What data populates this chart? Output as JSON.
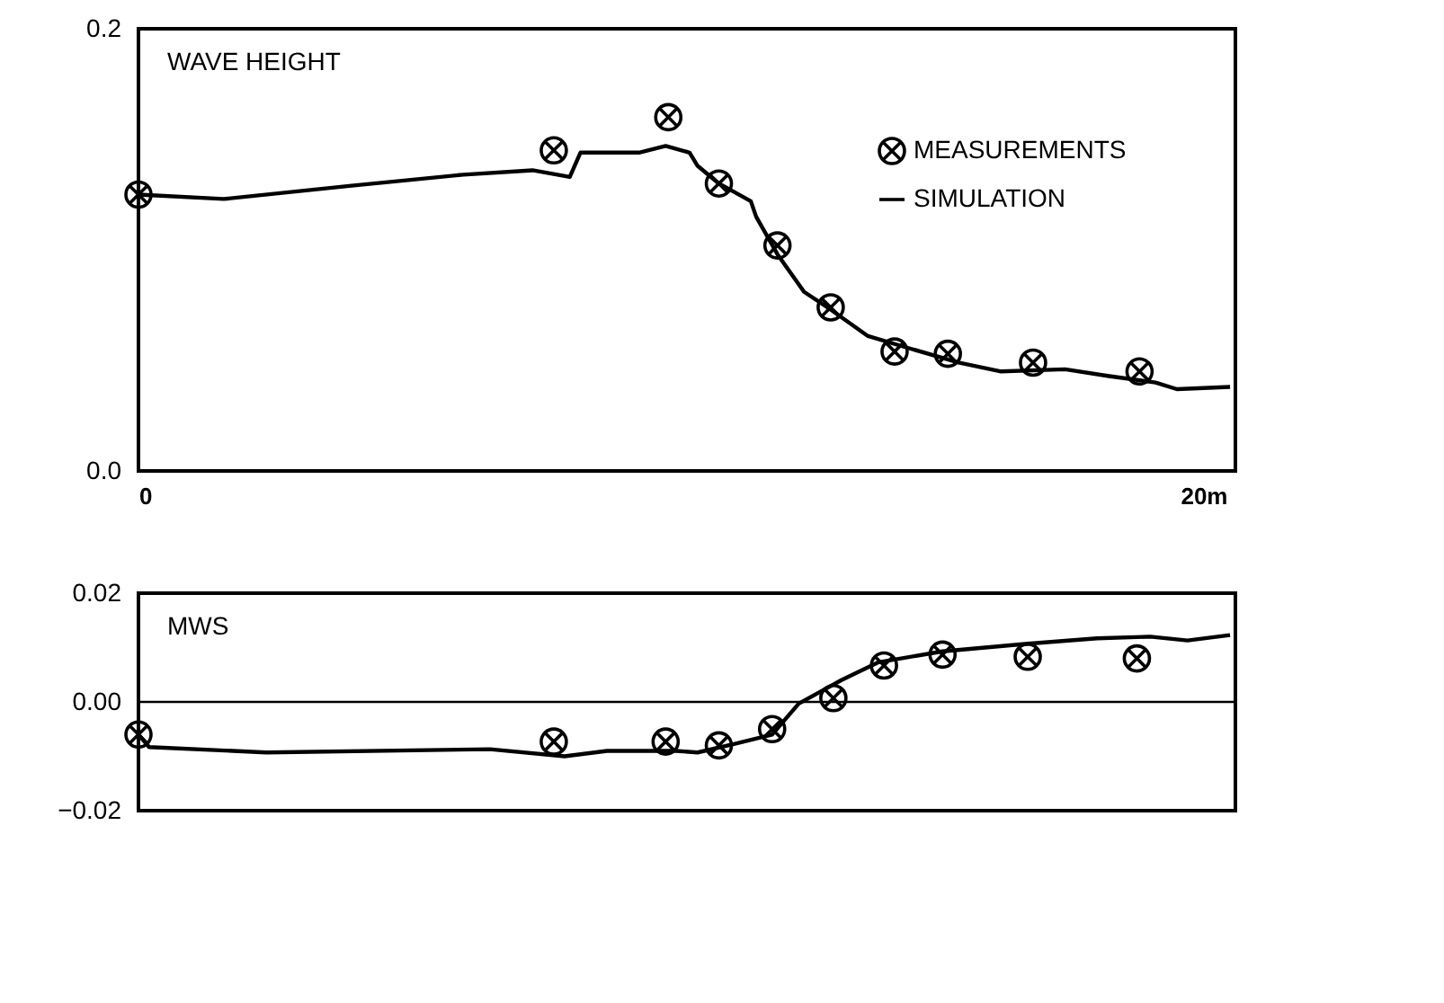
{
  "chart_data": [
    {
      "type": "line",
      "title": "WAVE HEIGHT",
      "xlim": [
        0,
        20.6
      ],
      "xticks": [
        0,
        {
          "value": 20,
          "label": "20m"
        }
      ],
      "ylim": [
        0,
        0.2
      ],
      "yticks": [
        {
          "value": 0,
          "label": "0.0"
        },
        {
          "value": 0.2,
          "label": "0.2"
        }
      ],
      "grid": false,
      "legend": "top right",
      "line_style": "solid",
      "series": [
        {
          "name": "MEASUREMENTS",
          "type": "scatter",
          "marker": "cross",
          "color": "#000000",
          "x": [
            0,
            7.8,
            9.95,
            10.9,
            12.0,
            13.0,
            14.2,
            15.2,
            16.8,
            18.8
          ],
          "values": [
            0.125,
            0.145,
            0.16,
            0.13,
            0.102,
            0.074,
            0.054,
            0.053,
            0.049,
            0.045
          ]
        },
        {
          "name": "SIMULATION",
          "type": "line",
          "color": "#000000",
          "x": [
            0,
            1.6,
            4.0,
            6.1,
            7.4,
            8.1,
            8.3,
            9.4,
            9.9,
            10.35,
            10.5,
            10.9,
            11.5,
            11.6,
            12.0,
            12.5,
            13.0,
            13.7,
            14.4,
            15.4,
            16.2,
            17.4,
            18.2,
            19.1,
            19.5,
            20.5
          ],
          "values": [
            0.125,
            0.123,
            0.129,
            0.134,
            0.136,
            0.133,
            0.144,
            0.144,
            0.147,
            0.144,
            0.138,
            0.13,
            0.122,
            0.115,
            0.098,
            0.081,
            0.073,
            0.061,
            0.056,
            0.049,
            0.045,
            0.046,
            0.043,
            0.04,
            0.037,
            0.038
          ]
        }
      ]
    },
    {
      "type": "line",
      "title": "MWS",
      "xlim": [
        0,
        20.6
      ],
      "tick_labels": "y",
      "ylim": [
        -0.02,
        0.02
      ],
      "yticks": [
        {
          "value": -0.02,
          "label": "−0.02"
        },
        {
          "value": 0,
          "label": "0.00"
        },
        {
          "value": 0.02,
          "label": "0.02"
        }
      ],
      "grid": false,
      "line_style": "solid",
      "ref_lines": [
        {
          "axis": "y",
          "value": 0,
          "color": "#000000"
        }
      ],
      "series": [
        {
          "type": "scatter",
          "marker": "cross",
          "color": "#000000",
          "x": [
            0,
            7.8,
            9.9,
            10.9,
            11.9,
            13.05,
            14.0,
            15.1,
            16.7,
            18.75
          ],
          "values": [
            -0.006,
            -0.0073,
            -0.0073,
            -0.008,
            -0.005,
            0.0007,
            0.0067,
            0.0087,
            0.0083,
            0.008
          ]
        },
        {
          "type": "line",
          "color": "#000000",
          "x": [
            0,
            0.2,
            2.4,
            6.6,
            8.0,
            8.8,
            10.1,
            10.5,
            11.2,
            11.9,
            12.4,
            13.2,
            13.9,
            15.1,
            16.7,
            18.0,
            19.0,
            19.7,
            20.5
          ],
          "values": [
            -0.006,
            -0.0083,
            -0.0093,
            -0.0087,
            -0.01,
            -0.009,
            -0.009,
            -0.0093,
            -0.0077,
            -0.006,
            -0.0003,
            0.004,
            0.0073,
            0.0093,
            0.0107,
            0.0117,
            0.012,
            0.0113,
            0.0123
          ]
        }
      ]
    }
  ]
}
